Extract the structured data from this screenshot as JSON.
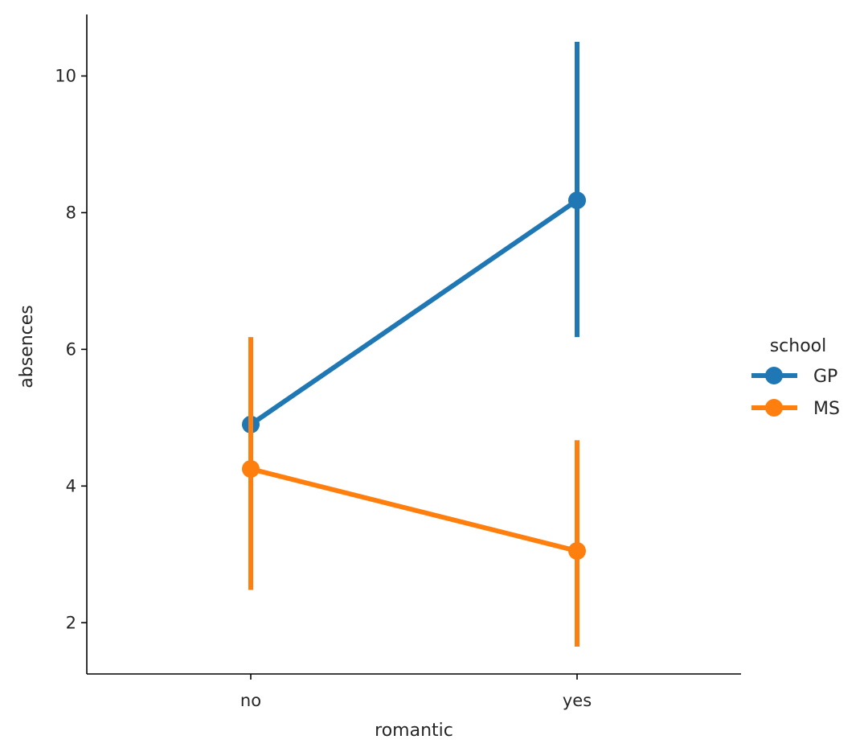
{
  "chart_data": {
    "type": "line",
    "xlabel": "romantic",
    "ylabel": "absences",
    "categories": [
      "no",
      "yes"
    ],
    "ylim": [
      1.25,
      10.9
    ],
    "yticks": [
      2,
      4,
      6,
      8,
      10
    ],
    "grid": false,
    "legend": {
      "title": "school",
      "placement": "right"
    },
    "series": [
      {
        "name": "GP",
        "color": "#1f77b4",
        "values": [
          4.9,
          8.18
        ],
        "ci_low": [
          3.8,
          6.18
        ],
        "ci_high": [
          6.0,
          10.5
        ]
      },
      {
        "name": "MS",
        "color": "#ff7f0e",
        "values": [
          4.25,
          3.05
        ],
        "ci_low": [
          2.48,
          1.65
        ],
        "ci_high": [
          6.18,
          4.67
        ]
      }
    ]
  }
}
